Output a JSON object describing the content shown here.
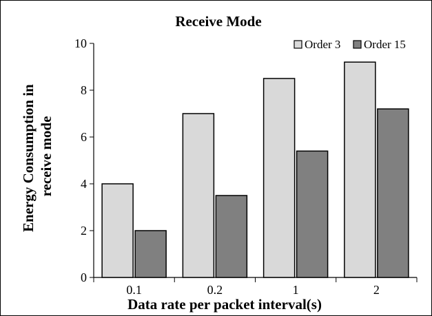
{
  "chart_data": {
    "type": "bar",
    "title": "Receive Mode",
    "xlabel": "Data rate per packet interval(s)",
    "ylabel": [
      "Energy Consumption in",
      "receive mode"
    ],
    "categories": [
      "0.1",
      "0.2",
      "1",
      "2"
    ],
    "series": [
      {
        "name": "Order 3",
        "values": [
          4,
          7,
          8.5,
          9.2
        ],
        "color": "#d9d9d9"
      },
      {
        "name": "Order 15",
        "values": [
          2,
          3.5,
          5.4,
          7.2
        ],
        "color": "#808080"
      }
    ],
    "ylim": [
      0,
      10
    ],
    "yticks": [
      "0",
      "2",
      "4",
      "6",
      "8",
      "10"
    ],
    "legend": "top-right",
    "grid": false
  }
}
